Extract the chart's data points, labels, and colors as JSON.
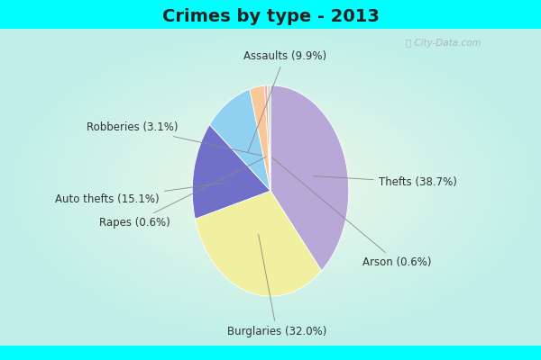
{
  "title": "Crimes by type - 2013",
  "labels": [
    "Thefts",
    "Burglaries",
    "Auto thefts",
    "Assaults",
    "Robberies",
    "Rapes",
    "Arson"
  ],
  "percentages": [
    38.7,
    32.0,
    15.1,
    9.9,
    3.1,
    0.6,
    0.6
  ],
  "colors": [
    "#b8a8d8",
    "#f0f0a0",
    "#7070c8",
    "#90d0f0",
    "#f8c898",
    "#f0a8a8",
    "#c8e0c0"
  ],
  "title_fontsize": 14,
  "label_fontsize": 8.5,
  "title_color": "#222222",
  "label_color": "#333333",
  "line_color": "#888888",
  "top_bar_color": "#00ffff",
  "bottom_bar_color": "#00ffff",
  "bg_gradient_center": "#e8f5e0",
  "bg_gradient_edge": "#c0f0e8"
}
